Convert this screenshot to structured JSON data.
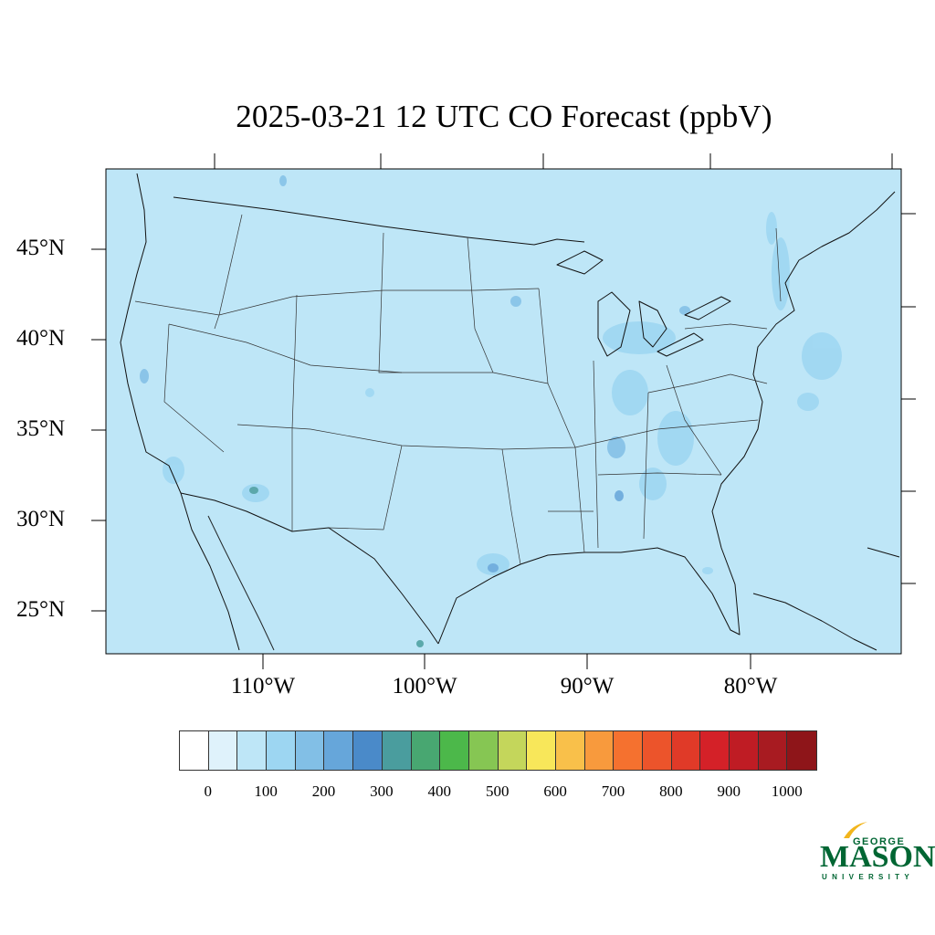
{
  "title": "2025-03-21 12 UTC CO Forecast (ppbV)",
  "map": {
    "background_color": "#bee6f7",
    "land_base_color": "#bee6f7",
    "latitude_labels": [
      "45°N",
      "40°N",
      "35°N",
      "30°N",
      "25°N"
    ],
    "longitude_labels": [
      "110°W",
      "100°W",
      "90°W",
      "80°W"
    ]
  },
  "colorbar": {
    "colors": [
      "#ffffff",
      "#dff2fb",
      "#bee6f7",
      "#9dd6f2",
      "#82bfe6",
      "#66a6da",
      "#4a8ac9",
      "#4a9d9e",
      "#48a771",
      "#4cb84a",
      "#86c653",
      "#c4d65b",
      "#f8e75a",
      "#f9c04a",
      "#f89a3d",
      "#f5712f",
      "#ec542b",
      "#e03a28",
      "#d42128",
      "#bf1c24",
      "#a81b21",
      "#8e1519"
    ],
    "tick_labels": [
      "0",
      "100",
      "200",
      "300",
      "400",
      "500",
      "600",
      "700",
      "800",
      "900",
      "1000"
    ]
  },
  "logo": {
    "top_line": "GEORGE",
    "main": "MASON",
    "bottom_line": "UNIVERSITY",
    "color": "#006633",
    "accent_color": "#f2b51c"
  }
}
